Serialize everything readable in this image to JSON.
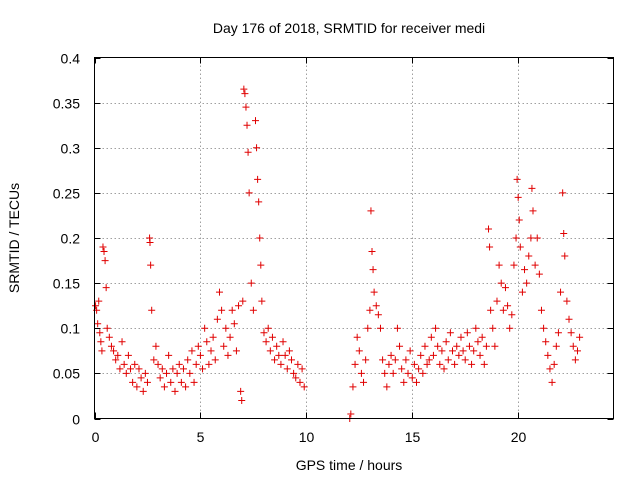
{
  "chart_data": {
    "type": "scatter",
    "title": "Day 176 of 2018, SRMTID for receiver medi",
    "xlabel": "GPS time / hours",
    "ylabel": "SRMTID / TECUs",
    "xlim": [
      0,
      24.5
    ],
    "ylim": [
      0,
      0.4
    ],
    "xticks": [
      0,
      5,
      10,
      15,
      20
    ],
    "xtick_labels": [
      "0",
      "5",
      "10",
      "15",
      "20"
    ],
    "yticks": [
      0,
      0.05,
      0.1,
      0.15,
      0.2,
      0.25,
      0.3,
      0.35,
      0.4
    ],
    "ytick_labels": [
      "0",
      "0.05",
      "0.1",
      "0.15",
      "0.2",
      "0.25",
      "0.3",
      "0.35",
      "0.4"
    ],
    "grid": true,
    "marker": "+",
    "marker_color": "#e00000",
    "series": [
      {
        "name": "SRMTID",
        "points": [
          [
            0.05,
            0.125
          ],
          [
            0.1,
            0.12
          ],
          [
            0.15,
            0.105
          ],
          [
            0.2,
            0.13
          ],
          [
            0.25,
            0.095
          ],
          [
            0.3,
            0.085
          ],
          [
            0.35,
            0.075
          ],
          [
            0.4,
            0.19
          ],
          [
            0.45,
            0.185
          ],
          [
            0.5,
            0.175
          ],
          [
            0.55,
            0.145
          ],
          [
            0.6,
            0.1
          ],
          [
            0.7,
            0.09
          ],
          [
            0.8,
            0.08
          ],
          [
            0.9,
            0.075
          ],
          [
            1.0,
            0.065
          ],
          [
            1.1,
            0.07
          ],
          [
            1.2,
            0.055
          ],
          [
            1.3,
            0.085
          ],
          [
            1.4,
            0.06
          ],
          [
            1.5,
            0.05
          ],
          [
            1.6,
            0.07
          ],
          [
            1.7,
            0.055
          ],
          [
            1.8,
            0.04
          ],
          [
            1.9,
            0.06
          ],
          [
            2.0,
            0.035
          ],
          [
            2.1,
            0.055
          ],
          [
            2.2,
            0.045
          ],
          [
            2.3,
            0.03
          ],
          [
            2.4,
            0.05
          ],
          [
            2.5,
            0.04
          ],
          [
            2.6,
            0.2
          ],
          [
            2.62,
            0.195
          ],
          [
            2.65,
            0.17
          ],
          [
            2.7,
            0.12
          ],
          [
            2.8,
            0.065
          ],
          [
            2.9,
            0.08
          ],
          [
            3.0,
            0.06
          ],
          [
            3.1,
            0.045
          ],
          [
            3.2,
            0.055
          ],
          [
            3.3,
            0.035
          ],
          [
            3.4,
            0.05
          ],
          [
            3.5,
            0.07
          ],
          [
            3.6,
            0.04
          ],
          [
            3.7,
            0.055
          ],
          [
            3.8,
            0.03
          ],
          [
            3.9,
            0.05
          ],
          [
            4.0,
            0.06
          ],
          [
            4.1,
            0.04
          ],
          [
            4.2,
            0.055
          ],
          [
            4.3,
            0.035
          ],
          [
            4.4,
            0.065
          ],
          [
            4.5,
            0.05
          ],
          [
            4.6,
            0.075
          ],
          [
            4.7,
            0.04
          ],
          [
            4.8,
            0.06
          ],
          [
            4.9,
            0.08
          ],
          [
            5.0,
            0.07
          ],
          [
            5.1,
            0.055
          ],
          [
            5.2,
            0.1
          ],
          [
            5.3,
            0.085
          ],
          [
            5.4,
            0.06
          ],
          [
            5.5,
            0.075
          ],
          [
            5.6,
            0.09
          ],
          [
            5.7,
            0.065
          ],
          [
            5.8,
            0.11
          ],
          [
            5.9,
            0.14
          ],
          [
            6.0,
            0.12
          ],
          [
            6.1,
            0.08
          ],
          [
            6.2,
            0.1
          ],
          [
            6.3,
            0.07
          ],
          [
            6.4,
            0.09
          ],
          [
            6.5,
            0.12
          ],
          [
            6.6,
            0.105
          ],
          [
            6.7,
            0.075
          ],
          [
            6.8,
            0.125
          ],
          [
            6.9,
            0.03
          ],
          [
            6.95,
            0.02
          ],
          [
            7.0,
            0.13
          ],
          [
            7.05,
            0.365
          ],
          [
            7.1,
            0.36
          ],
          [
            7.15,
            0.345
          ],
          [
            7.2,
            0.325
          ],
          [
            7.25,
            0.295
          ],
          [
            7.3,
            0.25
          ],
          [
            7.4,
            0.15
          ],
          [
            7.5,
            0.12
          ],
          [
            7.6,
            0.33
          ],
          [
            7.65,
            0.3
          ],
          [
            7.7,
            0.265
          ],
          [
            7.75,
            0.24
          ],
          [
            7.8,
            0.2
          ],
          [
            7.85,
            0.17
          ],
          [
            7.9,
            0.13
          ],
          [
            8.0,
            0.095
          ],
          [
            8.1,
            0.085
          ],
          [
            8.2,
            0.1
          ],
          [
            8.3,
            0.075
          ],
          [
            8.4,
            0.09
          ],
          [
            8.5,
            0.065
          ],
          [
            8.6,
            0.08
          ],
          [
            8.7,
            0.07
          ],
          [
            8.8,
            0.06
          ],
          [
            8.9,
            0.085
          ],
          [
            9.0,
            0.07
          ],
          [
            9.1,
            0.055
          ],
          [
            9.2,
            0.075
          ],
          [
            9.3,
            0.065
          ],
          [
            9.4,
            0.05
          ],
          [
            9.5,
            0.045
          ],
          [
            9.6,
            0.06
          ],
          [
            9.7,
            0.04
          ],
          [
            9.8,
            0.055
          ],
          [
            9.9,
            0.035
          ],
          [
            12.05,
            0.0
          ],
          [
            12.1,
            0.005
          ],
          [
            12.2,
            0.035
          ],
          [
            12.3,
            0.06
          ],
          [
            12.4,
            0.09
          ],
          [
            12.5,
            0.075
          ],
          [
            12.6,
            0.05
          ],
          [
            12.7,
            0.04
          ],
          [
            12.8,
            0.065
          ],
          [
            12.9,
            0.1
          ],
          [
            13.0,
            0.12
          ],
          [
            13.05,
            0.23
          ],
          [
            13.1,
            0.185
          ],
          [
            13.15,
            0.165
          ],
          [
            13.2,
            0.14
          ],
          [
            13.3,
            0.125
          ],
          [
            13.4,
            0.115
          ],
          [
            13.5,
            0.1
          ],
          [
            13.6,
            0.065
          ],
          [
            13.7,
            0.05
          ],
          [
            13.8,
            0.035
          ],
          [
            13.9,
            0.06
          ],
          [
            14.0,
            0.07
          ],
          [
            14.1,
            0.05
          ],
          [
            14.2,
            0.065
          ],
          [
            14.3,
            0.1
          ],
          [
            14.4,
            0.08
          ],
          [
            14.5,
            0.055
          ],
          [
            14.6,
            0.04
          ],
          [
            14.7,
            0.065
          ],
          [
            14.8,
            0.05
          ],
          [
            14.9,
            0.075
          ],
          [
            15.0,
            0.045
          ],
          [
            15.1,
            0.06
          ],
          [
            15.2,
            0.04
          ],
          [
            15.3,
            0.055
          ],
          [
            15.4,
            0.07
          ],
          [
            15.5,
            0.05
          ],
          [
            15.6,
            0.08
          ],
          [
            15.7,
            0.06
          ],
          [
            15.8,
            0.065
          ],
          [
            15.9,
            0.09
          ],
          [
            16.0,
            0.07
          ],
          [
            16.1,
            0.1
          ],
          [
            16.2,
            0.08
          ],
          [
            16.3,
            0.06
          ],
          [
            16.4,
            0.075
          ],
          [
            16.5,
            0.055
          ],
          [
            16.6,
            0.085
          ],
          [
            16.7,
            0.065
          ],
          [
            16.8,
            0.095
          ],
          [
            16.9,
            0.075
          ],
          [
            17.0,
            0.06
          ],
          [
            17.1,
            0.08
          ],
          [
            17.2,
            0.07
          ],
          [
            17.3,
            0.09
          ],
          [
            17.4,
            0.075
          ],
          [
            17.5,
            0.065
          ],
          [
            17.6,
            0.095
          ],
          [
            17.7,
            0.08
          ],
          [
            17.8,
            0.06
          ],
          [
            17.9,
            0.075
          ],
          [
            18.0,
            0.1
          ],
          [
            18.1,
            0.085
          ],
          [
            18.2,
            0.07
          ],
          [
            18.3,
            0.09
          ],
          [
            18.4,
            0.06
          ],
          [
            18.5,
            0.08
          ],
          [
            18.6,
            0.21
          ],
          [
            18.65,
            0.19
          ],
          [
            18.7,
            0.12
          ],
          [
            18.8,
            0.1
          ],
          [
            18.9,
            0.08
          ],
          [
            19.0,
            0.13
          ],
          [
            19.1,
            0.17
          ],
          [
            19.2,
            0.15
          ],
          [
            19.3,
            0.12
          ],
          [
            19.4,
            0.145
          ],
          [
            19.5,
            0.125
          ],
          [
            19.6,
            0.1
          ],
          [
            19.7,
            0.115
          ],
          [
            19.8,
            0.17
          ],
          [
            19.9,
            0.2
          ],
          [
            19.95,
            0.265
          ],
          [
            20.0,
            0.245
          ],
          [
            20.05,
            0.22
          ],
          [
            20.1,
            0.19
          ],
          [
            20.2,
            0.14
          ],
          [
            20.3,
            0.165
          ],
          [
            20.4,
            0.15
          ],
          [
            20.5,
            0.18
          ],
          [
            20.6,
            0.2
          ],
          [
            20.65,
            0.255
          ],
          [
            20.7,
            0.23
          ],
          [
            20.8,
            0.17
          ],
          [
            20.9,
            0.2
          ],
          [
            21.0,
            0.16
          ],
          [
            21.1,
            0.12
          ],
          [
            21.2,
            0.1
          ],
          [
            21.3,
            0.085
          ],
          [
            21.4,
            0.07
          ],
          [
            21.5,
            0.055
          ],
          [
            21.6,
            0.04
          ],
          [
            21.7,
            0.06
          ],
          [
            21.8,
            0.08
          ],
          [
            21.9,
            0.095
          ],
          [
            22.0,
            0.14
          ],
          [
            22.1,
            0.25
          ],
          [
            22.15,
            0.205
          ],
          [
            22.2,
            0.18
          ],
          [
            22.3,
            0.13
          ],
          [
            22.4,
            0.11
          ],
          [
            22.5,
            0.095
          ],
          [
            22.6,
            0.08
          ],
          [
            22.7,
            0.065
          ],
          [
            22.8,
            0.075
          ],
          [
            22.9,
            0.09
          ]
        ]
      }
    ]
  }
}
